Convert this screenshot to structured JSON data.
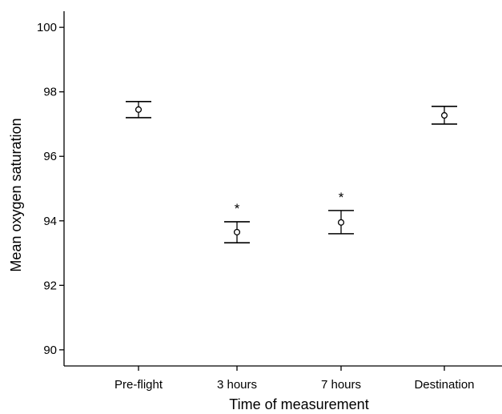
{
  "chart_data": {
    "type": "scatter",
    "xlabel": "Time of measurement",
    "ylabel": "Mean oxygen saturation",
    "categories": [
      "Pre-flight",
      "3 hours",
      "7 hours",
      "Destination"
    ],
    "ylim": [
      89.5,
      100.5
    ],
    "yticks": [
      90,
      92,
      94,
      96,
      98,
      100
    ],
    "ytick_labels": [
      "90",
      "92",
      "94",
      "96",
      "98",
      "100"
    ],
    "grid": false,
    "series": [
      {
        "means": [
          97.45,
          93.65,
          93.95,
          97.27
        ],
        "ci_low": [
          97.2,
          93.32,
          93.6,
          97.0
        ],
        "ci_high": [
          97.7,
          93.97,
          94.32,
          97.55
        ],
        "annotations": [
          "",
          "*",
          "*",
          ""
        ]
      }
    ]
  }
}
